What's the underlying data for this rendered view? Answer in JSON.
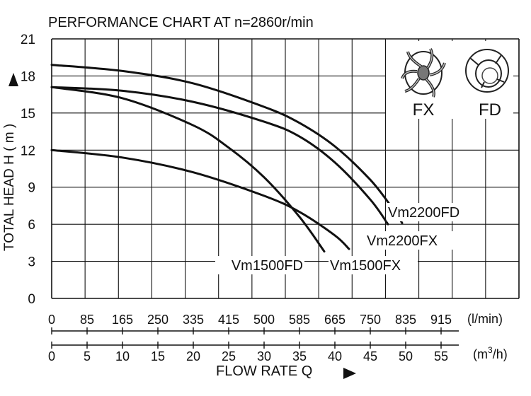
{
  "chart_data": {
    "type": "line",
    "title": "PERFORMANCE CHART AT n=2860r/min",
    "ylabel": "TOTAL HEAD H ( m )",
    "xlabel": "FLOW RATE Q",
    "ylim": [
      0,
      21
    ],
    "xlim": [
      0,
      66
    ],
    "grid": true,
    "x_unit_primary": "(l/min)",
    "x_unit_secondary": "(m",
    "x_unit_secondary_sup": "3",
    "x_unit_secondary_end": "/h)",
    "y_ticks": [
      "0",
      "3",
      "6",
      "9",
      "12",
      "15",
      "18",
      "21"
    ],
    "x_ticks_lmin": [
      "0",
      "85",
      "165",
      "250",
      "335",
      "415",
      "500",
      "585",
      "665",
      "750",
      "835",
      "915"
    ],
    "x_ticks_m3h": [
      "0",
      "5",
      "10",
      "15",
      "20",
      "25",
      "30",
      "35",
      "40",
      "45",
      "50",
      "55"
    ],
    "series": [
      {
        "name": "Vm2200FD",
        "x": [
          0,
          10,
          20,
          30,
          35,
          40,
          45,
          48,
          49.5
        ],
        "y": [
          18.9,
          18.4,
          17.4,
          15.5,
          14.2,
          12.3,
          9.6,
          7.4,
          6.1
        ]
      },
      {
        "name": "Vm2200FX",
        "x": [
          0,
          10,
          20,
          30,
          35,
          40,
          45,
          47.5
        ],
        "y": [
          17.1,
          16.8,
          15.9,
          14.3,
          13.1,
          11.0,
          8.0,
          6.0
        ]
      },
      {
        "name": "Vm1500FD",
        "x": [
          0,
          10,
          20,
          25,
          30,
          35,
          38.5
        ],
        "y": [
          17.1,
          16.2,
          14.0,
          12.2,
          9.8,
          6.6,
          3.8
        ]
      },
      {
        "name": "Vm1500FX",
        "x": [
          0,
          10,
          20,
          30,
          35,
          40,
          42
        ],
        "y": [
          12.0,
          11.4,
          10.2,
          8.3,
          7.0,
          5.1,
          4.0
        ]
      }
    ],
    "legend": {
      "impeller_fx": "FX",
      "impeller_fd": "FD"
    }
  }
}
